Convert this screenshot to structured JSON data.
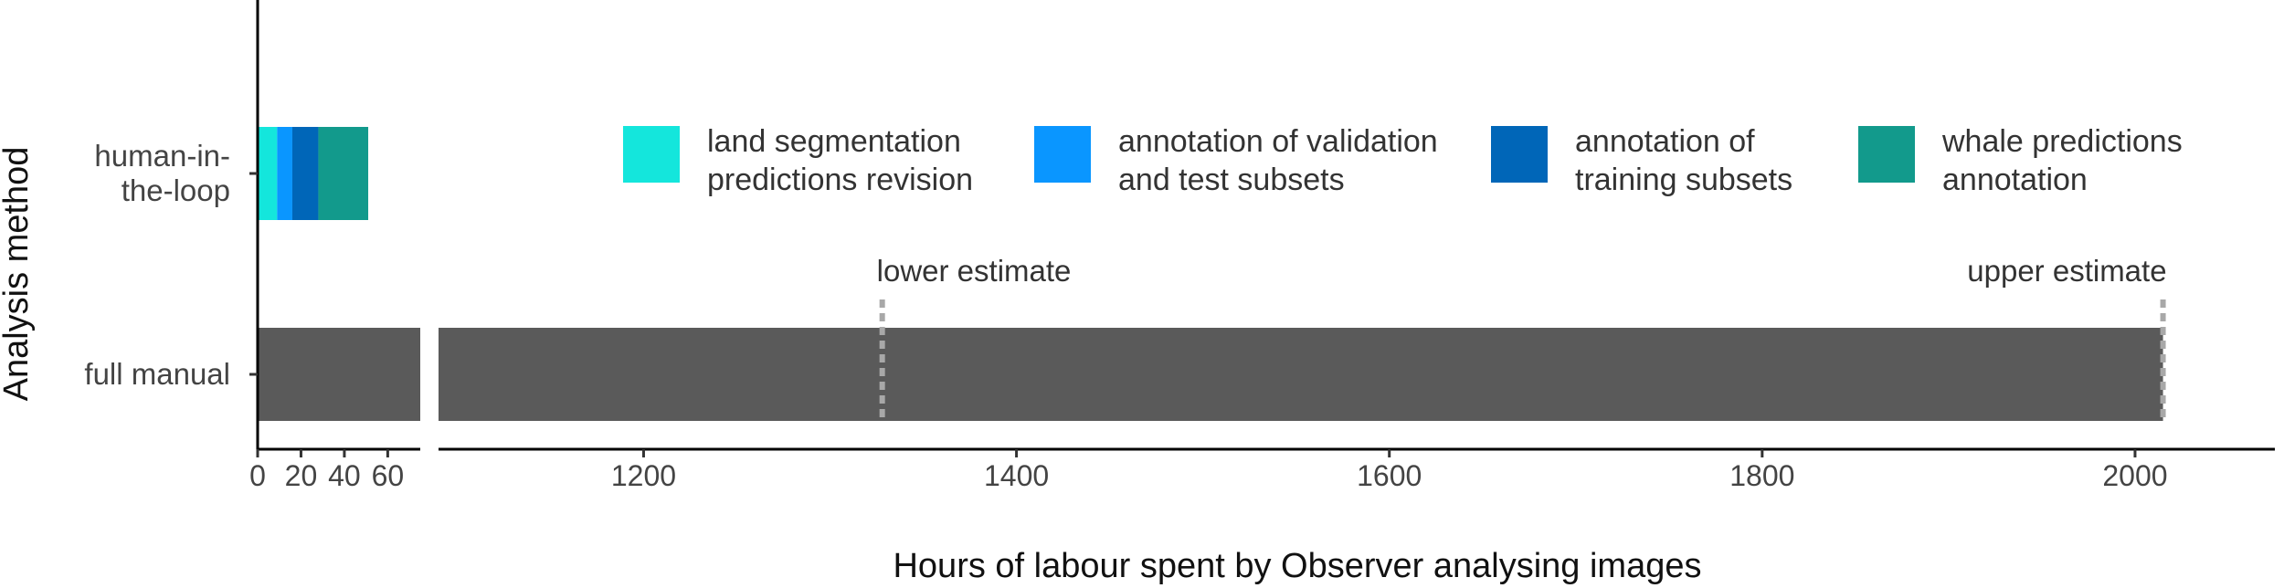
{
  "chart_data": {
    "type": "bar",
    "orientation": "horizontal",
    "stacked": true,
    "xlabel": "Hours of labour spent by Observer analysing images",
    "ylabel": "Analysis method",
    "categories": [
      "human-in-the-loop",
      "full manual"
    ],
    "category_lines": [
      [
        "human-in-",
        "the-loop"
      ],
      [
        "full manual"
      ]
    ],
    "x_break": {
      "left_range": [
        0,
        75
      ],
      "right_range": [
        1090,
        2075
      ]
    },
    "x_ticks_left": [
      0,
      20,
      40,
      60
    ],
    "x_ticks_right": [
      1200,
      1400,
      1600,
      1800,
      2000
    ],
    "series": [
      {
        "name": "land segmentation predictions revision",
        "legend_lines": [
          "land segmentation",
          "predictions revision"
        ],
        "color": "#14e6dc",
        "values": [
          9,
          0
        ]
      },
      {
        "name": "annotation of validation and test subsets",
        "legend_lines": [
          "annotation of validation",
          "and test subsets"
        ],
        "color": "#0a96ff",
        "values": [
          7,
          0
        ]
      },
      {
        "name": "annotation of training subsets",
        "legend_lines": [
          "annotation of",
          "training subsets"
        ],
        "color": "#0066b8",
        "values": [
          12,
          0
        ]
      },
      {
        "name": "whale predictions annotation",
        "legend_lines": [
          "whale predictions",
          "annotation"
        ],
        "color": "#129a8c",
        "values": [
          23,
          0
        ]
      }
    ],
    "full_manual": {
      "value": 2015,
      "color": "#5a5a5a"
    },
    "annotations": [
      {
        "label": "lower estimate",
        "x": 1328
      },
      {
        "label": "upper estimate",
        "x": 2015
      }
    ],
    "grid": false,
    "legend_position": "inside-top-right"
  }
}
